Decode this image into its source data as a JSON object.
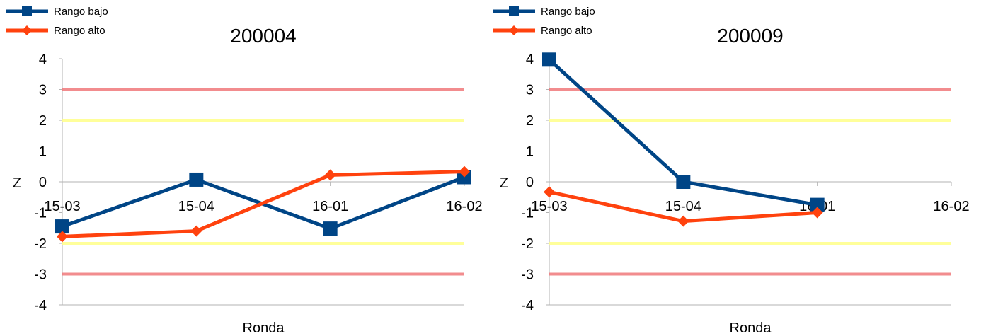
{
  "chart_data": [
    {
      "type": "line",
      "title": "200004",
      "xlabel": "Ronda",
      "ylabel": "Z",
      "ylim": [
        -4,
        4
      ],
      "yticks": [
        "-4",
        "-3",
        "-2",
        "-1",
        "0",
        "1",
        "2",
        "3",
        "4"
      ],
      "categories": [
        "15-03",
        "15-04",
        "16-01",
        "16-02"
      ],
      "series": [
        {
          "name": "Rango bajo",
          "color": "#004586",
          "marker": "square",
          "values": [
            -1.45,
            0.07,
            -1.52,
            0.15
          ]
        },
        {
          "name": "Rango alto",
          "color": "#ff420e",
          "marker": "diamond",
          "values": [
            -1.78,
            -1.6,
            0.22,
            0.33
          ]
        }
      ],
      "reference_lines": [
        {
          "y": 3,
          "color": "#f0787a"
        },
        {
          "y": 2,
          "color": "#ffff88"
        },
        {
          "y": -2,
          "color": "#ffff88"
        },
        {
          "y": -3,
          "color": "#f0787a"
        }
      ],
      "legend_position": "top-left"
    },
    {
      "type": "line",
      "title": "200009",
      "xlabel": "Ronda",
      "ylabel": "Z",
      "ylim": [
        -4,
        4
      ],
      "yticks": [
        "-4",
        "-3",
        "-2",
        "-1",
        "0",
        "1",
        "2",
        "3",
        "4"
      ],
      "categories": [
        "15-03",
        "15-04",
        "16-01",
        "16-02"
      ],
      "series": [
        {
          "name": "Rango bajo",
          "color": "#004586",
          "marker": "square",
          "values": [
            3.97,
            0.0,
            -0.75,
            null
          ]
        },
        {
          "name": "Rango alto",
          "color": "#ff420e",
          "marker": "diamond",
          "values": [
            -0.33,
            -1.28,
            -1.0,
            null
          ]
        }
      ],
      "reference_lines": [
        {
          "y": 3,
          "color": "#f0787a"
        },
        {
          "y": 2,
          "color": "#ffff88"
        },
        {
          "y": -2,
          "color": "#ffff88"
        },
        {
          "y": -3,
          "color": "#f0787a"
        }
      ],
      "legend_position": "top-left"
    }
  ]
}
